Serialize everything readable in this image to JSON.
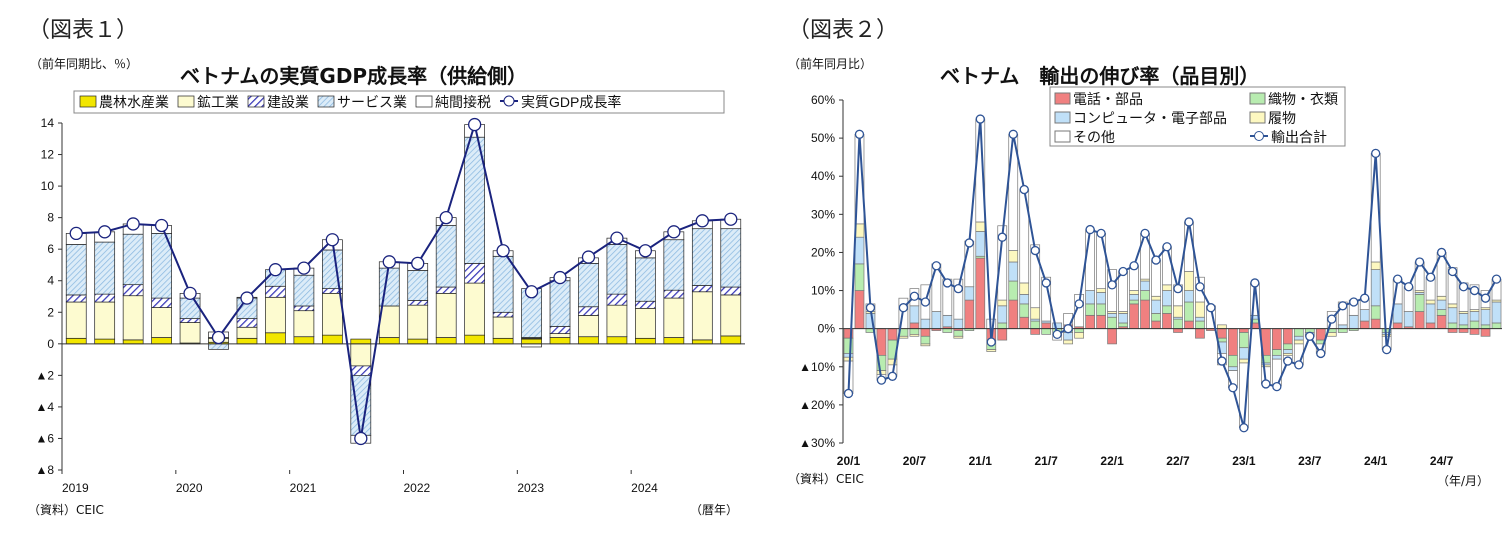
{
  "chart_data": [
    {
      "type": "bar",
      "figure_label": "（図表１）",
      "title": "ベトナムの実質GDP成長率（供給側）",
      "unit_label": "（前年同期比、％）",
      "xlabel": "（暦年）",
      "source": "（資料）CEIC",
      "stacked": true,
      "ylim": [
        -8,
        14
      ],
      "yticks": [
        14,
        12,
        10,
        8,
        6,
        4,
        2,
        0,
        -2,
        -4,
        -6,
        -8
      ],
      "ytick_labels": [
        "14",
        "12",
        "10",
        "8",
        "6",
        "4",
        "2",
        "0",
        "▲2",
        "▲4",
        "▲6",
        "▲8"
      ],
      "x_tick_labels": [
        "2019",
        "2020",
        "2021",
        "2022",
        "2023",
        "2024"
      ],
      "categories": [
        "2019Q1",
        "2019Q2",
        "2019Q3",
        "2019Q4",
        "2020Q1",
        "2020Q2",
        "2020Q3",
        "2020Q4",
        "2021Q1",
        "2021Q2",
        "2021Q3",
        "2021Q4",
        "2022Q1",
        "2022Q2",
        "2022Q3",
        "2022Q4",
        "2023Q1",
        "2023Q2",
        "2023Q3",
        "2023Q4",
        "2024Q1",
        "2024Q2",
        "2024Q3",
        "2024Q4"
      ],
      "legend_placement": "top",
      "series": [
        {
          "name": "農林水産業",
          "style": "solid",
          "color": "#f2e600",
          "values": [
            0.35,
            0.3,
            0.25,
            0.4,
            0.05,
            0.1,
            0.35,
            0.7,
            0.45,
            0.55,
            0.3,
            0.4,
            0.3,
            0.4,
            0.55,
            0.35,
            0.3,
            0.4,
            0.45,
            0.45,
            0.35,
            0.4,
            0.25,
            0.5
          ]
        },
        {
          "name": "鉱工業",
          "style": "solid",
          "color": "#fdfbd0",
          "values": [
            2.3,
            2.35,
            2.8,
            1.9,
            1.3,
            0.25,
            0.7,
            2.25,
            1.65,
            2.65,
            -1.4,
            2.0,
            2.15,
            2.8,
            3.3,
            1.35,
            0.05,
            0.25,
            1.35,
            2.0,
            1.9,
            2.5,
            3.05,
            2.6
          ]
        },
        {
          "name": "建設業",
          "style": "hatch-dark",
          "color": "#4040c0",
          "values": [
            0.45,
            0.5,
            0.7,
            0.6,
            0.25,
            0.05,
            0.55,
            0.7,
            0.3,
            0.3,
            -0.6,
            0.0,
            0.3,
            0.4,
            1.25,
            0.3,
            0.05,
            0.45,
            0.55,
            0.7,
            0.45,
            0.5,
            0.4,
            0.5
          ]
        },
        {
          "name": "サービス業",
          "style": "hatch-light",
          "color": "#9cc6e8",
          "values": [
            3.2,
            3.3,
            3.2,
            4.1,
            1.3,
            -0.35,
            1.3,
            1.05,
            1.95,
            2.45,
            -3.8,
            2.4,
            1.9,
            3.9,
            8.0,
            3.55,
            3.1,
            2.9,
            2.75,
            3.15,
            2.75,
            3.2,
            3.6,
            3.7
          ]
        },
        {
          "name": "純間接税",
          "style": "solid",
          "color": "#ffffff",
          "values": [
            0.7,
            0.65,
            0.65,
            0.5,
            0.3,
            0.35,
            0.05,
            0.0,
            0.45,
            0.65,
            -0.5,
            0.4,
            0.45,
            0.5,
            0.8,
            0.35,
            -0.2,
            0.2,
            0.35,
            0.4,
            0.45,
            0.5,
            0.5,
            0.6
          ]
        }
      ],
      "line": {
        "name": "実質GDP成長率",
        "color": "#1a237e",
        "values": [
          7.0,
          7.1,
          7.6,
          7.5,
          3.2,
          0.4,
          2.9,
          4.7,
          4.8,
          6.6,
          -6.0,
          5.2,
          5.1,
          8.0,
          13.9,
          5.9,
          3.3,
          4.2,
          5.5,
          6.7,
          5.9,
          7.1,
          7.8,
          7.9
        ]
      }
    },
    {
      "type": "bar",
      "figure_label": "（図表２）",
      "title": "ベトナム　輸出の伸び率（品目別）",
      "unit_label": "（前年同月比）",
      "xlabel": "（年/月）",
      "source": "（資料）CEIC",
      "stacked": true,
      "ylim": [
        -30,
        60
      ],
      "yticks": [
        60,
        50,
        40,
        30,
        20,
        10,
        0,
        -10,
        -20,
        -30
      ],
      "ytick_labels": [
        "60%",
        "50%",
        "40%",
        "30%",
        "20%",
        "10%",
        "0%",
        "▲10%",
        "▲20%",
        "▲30%"
      ],
      "x_tick_labels": [
        "20/1",
        "20/7",
        "21/1",
        "21/7",
        "22/1",
        "22/7",
        "23/1",
        "23/7",
        "24/1",
        "24/7"
      ],
      "x_range": [
        "2020/1",
        "2024/12"
      ],
      "legend_placement": "top-center",
      "series": [
        {
          "name": "電話・部品",
          "color": "#f08080",
          "values": [
            -2.5,
            10,
            0,
            -7,
            -3,
            0,
            1.5,
            -2,
            -0.5,
            0.5,
            -0.5,
            7.5,
            18.5,
            -3,
            -3,
            7.5,
            3,
            -1.5,
            1.5,
            0,
            1,
            0.5,
            3.5,
            3.5,
            -4,
            0.5,
            6.5,
            7.5,
            2,
            4,
            -1,
            2,
            -2.5,
            -0.5,
            -2.5,
            -7,
            -1,
            1.5,
            -7,
            -5.5,
            -4,
            0,
            0,
            -3,
            0,
            0,
            0,
            2,
            2.5,
            0,
            1.5,
            0.5,
            4.5,
            1.5,
            3.5,
            -1,
            -1,
            -1.5,
            -2,
            0
          ]
        },
        {
          "name": "織物・衣類",
          "color": "#b8ecb0",
          "values": [
            -4,
            7,
            -1,
            -4,
            -5,
            -2,
            -1.5,
            -2,
            0,
            -1,
            -1.5,
            -0.5,
            0.5,
            -2.5,
            1.5,
            5,
            3.5,
            2,
            -1.5,
            -1.5,
            -1,
            -1,
            3,
            3,
            3,
            1,
            1,
            2.5,
            2,
            2,
            2.5,
            5,
            2,
            0,
            -1,
            -3,
            -4,
            1,
            -2,
            -1.5,
            -1.5,
            -2,
            -1,
            -1,
            -1,
            -1,
            -0.5,
            0,
            3.5,
            -1,
            0,
            0,
            4.5,
            0,
            1.5,
            1.5,
            1,
            2,
            1,
            1.5
          ]
        },
        {
          "name": "コンピュータ・電子部品",
          "color": "#c0e0f8",
          "values": [
            -1,
            7,
            4,
            0,
            0,
            0,
            4.5,
            2.5,
            4.5,
            3,
            2.5,
            3.5,
            6.5,
            0,
            4.5,
            5,
            2.5,
            0.5,
            0.5,
            1.5,
            -2,
            0,
            3.5,
            3,
            1,
            2.5,
            1.5,
            2.5,
            3.5,
            4,
            0.5,
            3,
            1,
            0,
            -3,
            -1,
            -3,
            1,
            -0.5,
            -1,
            -1,
            -1,
            -1,
            0,
            0,
            1,
            3.5,
            3,
            9.5,
            -0.5,
            5,
            4,
            0.5,
            5,
            2.5,
            4,
            3,
            2.5,
            4,
            5.5
          ]
        },
        {
          "name": "履物",
          "color": "#fdf8c0",
          "values": [
            -1,
            3.5,
            0.5,
            -1,
            -1.5,
            -0.5,
            -0.5,
            -0.5,
            0,
            0,
            -0.5,
            0,
            2.5,
            -0.5,
            1.5,
            3,
            3,
            3,
            0,
            0,
            -1,
            -1.5,
            0,
            1,
            0.5,
            0.5,
            1,
            0.5,
            1,
            1.5,
            3,
            5,
            4,
            0,
            1,
            0,
            -1,
            0,
            -0.5,
            0,
            -0.5,
            -1,
            0,
            0,
            -1,
            0,
            0,
            0,
            2,
            -0.5,
            0,
            0,
            0.5,
            1,
            1,
            1,
            0.5,
            0.5,
            0.5,
            0.5
          ]
        },
        {
          "name": "その他",
          "color": "#ffffff",
          "values": [
            -8.5,
            23.5,
            2,
            -1.5,
            -3,
            8,
            4.5,
            9,
            12.5,
            9.5,
            10.5,
            12,
            27,
            2.5,
            19.5,
            30.5,
            24.5,
            16.5,
            11.5,
            -1.5,
            3,
            8.5,
            16,
            14.5,
            11,
            10.5,
            6.5,
            12,
            9.5,
            10,
            5.5,
            13,
            6.5,
            6,
            -3,
            -4.5,
            -17,
            8.5,
            -4.5,
            -7,
            -1.5,
            -5.5,
            0,
            -2.5,
            4.5,
            6,
            4,
            3,
            28.5,
            -3.5,
            6.5,
            6.5,
            7.5,
            6,
            11.5,
            9.5,
            7.5,
            6.5,
            4.5,
            5.5
          ]
        }
      ],
      "line": {
        "name": "輸出合計",
        "color": "#2f5496",
        "values": [
          -17,
          51,
          5.5,
          -13.5,
          -12.5,
          5.5,
          8.5,
          7,
          16.5,
          12,
          10.5,
          22.5,
          55,
          -3.5,
          24,
          51,
          36.5,
          20.5,
          12,
          -1.5,
          0,
          6.5,
          26,
          25,
          11.5,
          15,
          16.5,
          25,
          18,
          21.5,
          10.5,
          28,
          11,
          5.5,
          -8.5,
          -15.5,
          -26,
          12,
          -14.5,
          -15.2,
          -8.5,
          -9.5,
          -2,
          -6.5,
          2.5,
          6,
          7,
          8,
          46,
          -5.5,
          13,
          11,
          17.5,
          13.5,
          20,
          15,
          11,
          10,
          8,
          13
        ]
      }
    }
  ]
}
